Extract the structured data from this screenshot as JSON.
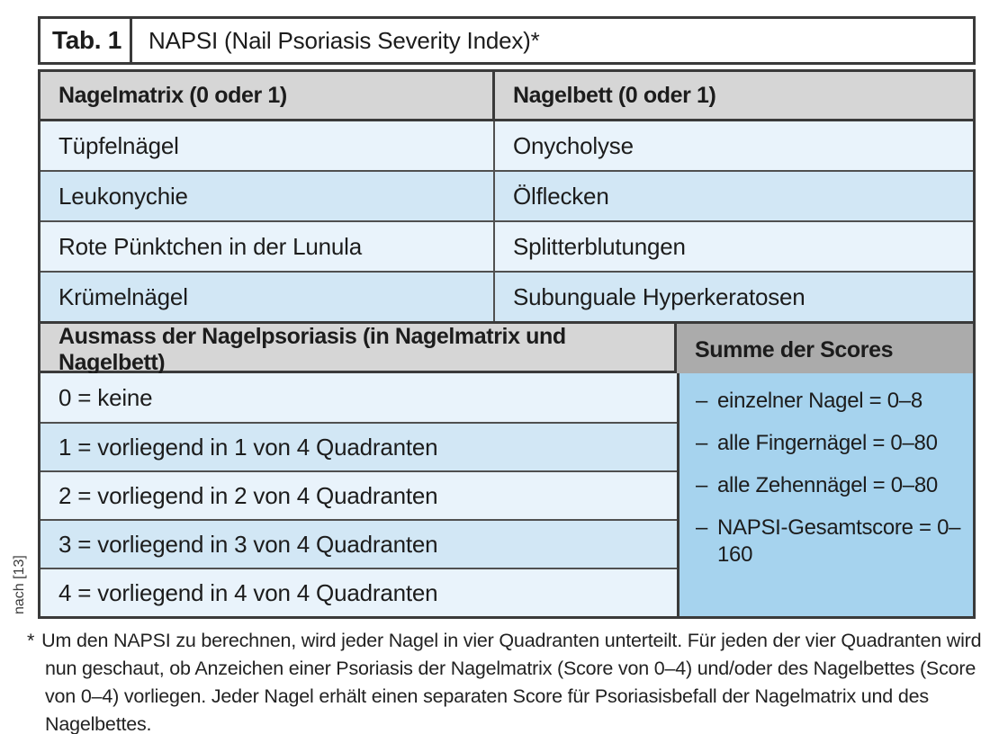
{
  "source_note": "nach [13]",
  "table": {
    "title_label": "Tab. 1",
    "title": "NAPSI (Nail Psoriasis Severity Index)*",
    "section1": {
      "headers": [
        "Nagelmatrix (0 oder 1)",
        "Nagelbett (0 oder 1)"
      ],
      "rows": [
        [
          "Tüpfelnägel",
          "Onycholyse"
        ],
        [
          "Leukonychie",
          "Ölflecken"
        ],
        [
          "Rote Pünktchen in der Lunula",
          "Splitterblutungen"
        ],
        [
          "Krümelnägel",
          "Subunguale Hyperkeratosen"
        ]
      ]
    },
    "section2": {
      "headers": [
        "Ausmass der Nagelpsoriasis (in Nagelmatrix und Nagelbett)",
        "Summe der Scores"
      ],
      "rows": [
        "0 = keine",
        "1 = vorliegend in 1 von 4 Quadranten",
        "2 = vorliegend in 2 von 4 Quadranten",
        "3 = vorliegend in 3 von 4 Quadranten",
        "4 = vorliegend in 4 von 4 Quadranten"
      ],
      "score_bullet": "–",
      "scores": [
        "einzelner Nagel = 0–8",
        "alle Fingernägel = 0–80",
        "alle Zehennägel = 0–80",
        "NAPSI-Gesamtscore = 0–160"
      ]
    }
  },
  "footnote": {
    "marker": "*",
    "text": "Um den NAPSI zu berechnen, wird jeder Nagel in vier Quadranten unterteilt. Für jeden der vier Quadranten wird nun geschaut, ob Anzeichen einer Psoriasis der Nagelmatrix (Score von 0–4) und/oder des Nagelbettes (Score von 0–4) vorliegen. Jeder Nagel erhält einen separaten Score für Psoriasisbefall der Nagelmatrix und des Nagelbettes."
  },
  "colors": {
    "page_bg": "#ffffff",
    "text": "#1c1c1c",
    "border_dark": "#3a3a3a",
    "row_line": "#505050",
    "gray_light": "#d6d6d6",
    "gray_mid": "#ababab",
    "blue_light": "#e9f3fb",
    "blue_mid": "#d2e7f5",
    "blue_strong": "#a6d3ee"
  }
}
